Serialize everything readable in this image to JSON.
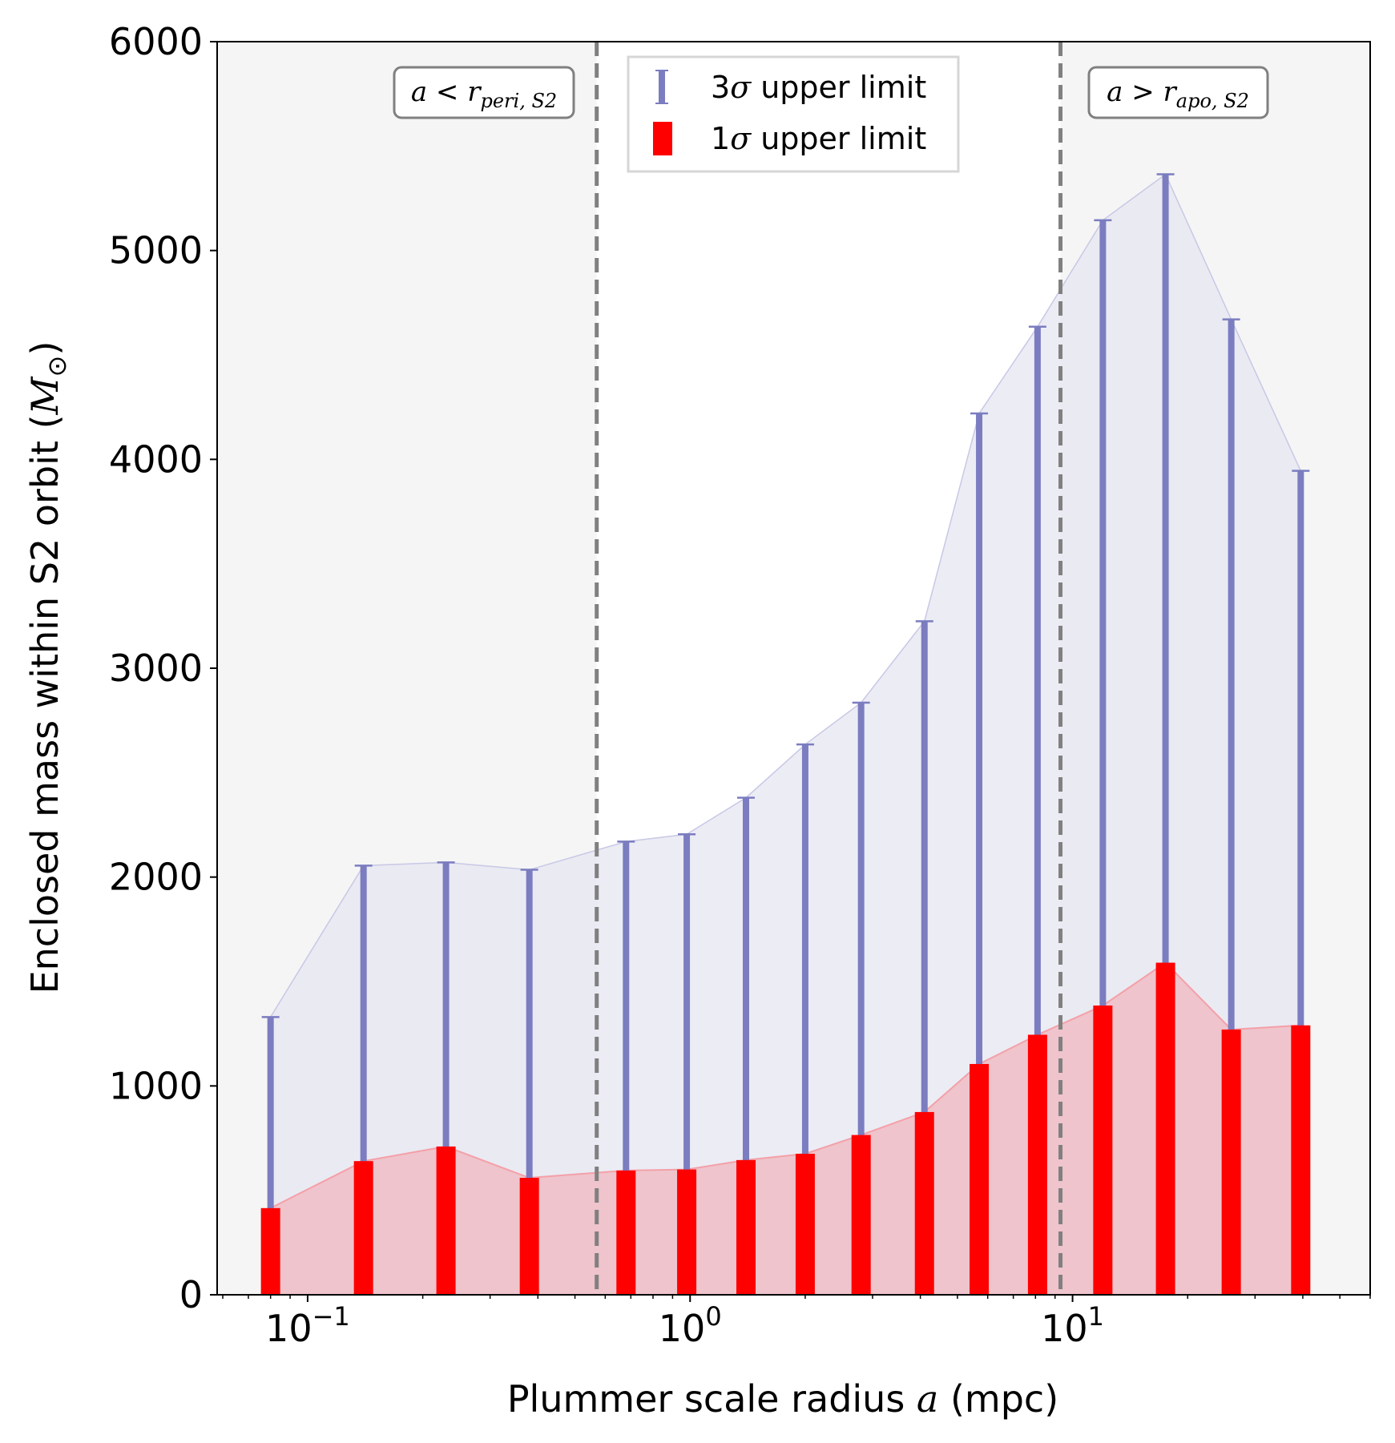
{
  "chart_data": {
    "type": "bar",
    "xscale": "log",
    "xlabel": "Plummer scale radius a (mpc)",
    "xlabel_parts": {
      "before": "Plummer scale radius ",
      "var": "a",
      "after": " (mpc)"
    },
    "ylabel": "Enclosed mass within S2 orbit (M⊙)",
    "ylabel_parts": {
      "before": "Enclosed mass within S2 orbit (",
      "var": "M",
      "sub": "⊙",
      "after": ")"
    },
    "xlim": [
      0.058,
      60
    ],
    "ylim": [
      0,
      6000
    ],
    "x_ticks": [
      {
        "value": 0.1,
        "base": "10",
        "exp": "−1"
      },
      {
        "value": 1,
        "base": "10",
        "exp": "0"
      },
      {
        "value": 10,
        "base": "10",
        "exp": "1"
      }
    ],
    "y_ticks": [
      "0",
      "1000",
      "2000",
      "3000",
      "4000",
      "5000",
      "6000"
    ],
    "x": [
      0.08,
      0.14,
      0.23,
      0.38,
      0.68,
      0.98,
      1.4,
      2.0,
      2.8,
      4.1,
      5.7,
      8.1,
      12.0,
      17.5,
      26.0,
      39.5
    ],
    "series": [
      {
        "name": "3σ upper limit",
        "kind": "errorbar",
        "color": "#7b7dc0",
        "values": [
          1330,
          2055,
          2070,
          2035,
          2170,
          2205,
          2380,
          2635,
          2835,
          3225,
          4220,
          4635,
          5145,
          5365,
          4670,
          3945
        ]
      },
      {
        "name": "1σ upper limit",
        "kind": "bar",
        "color": "#ff0000",
        "values": [
          415,
          640,
          710,
          560,
          595,
          600,
          645,
          675,
          765,
          875,
          1105,
          1245,
          1385,
          1590,
          1270,
          1290
        ]
      }
    ],
    "legend": {
      "position": "top-center",
      "entries": [
        {
          "num": "3",
          "sym": "σ",
          "rest": " upper limit",
          "color": "#7b7dc0"
        },
        {
          "num": "1",
          "sym": "σ",
          "rest": " upper limit",
          "color": "#ff0000"
        }
      ]
    },
    "vlines": [
      {
        "value": 0.57,
        "style": "dashed",
        "color": "#808080"
      },
      {
        "value": 9.3,
        "style": "dashed",
        "color": "#808080"
      }
    ],
    "annotations": [
      {
        "id": "peri",
        "var": "a",
        "op": " < ",
        "r": "r",
        "sub": "peri, S2"
      },
      {
        "id": "apo",
        "var": "a",
        "op": " > ",
        "r": "r",
        "sub": "apo, S2"
      }
    ],
    "colors": {
      "outer_region_bg": "#f5f5f5",
      "upper_fill": "#e6e6f2",
      "lower_fill": "#f0c0c8"
    },
    "grid": false
  }
}
